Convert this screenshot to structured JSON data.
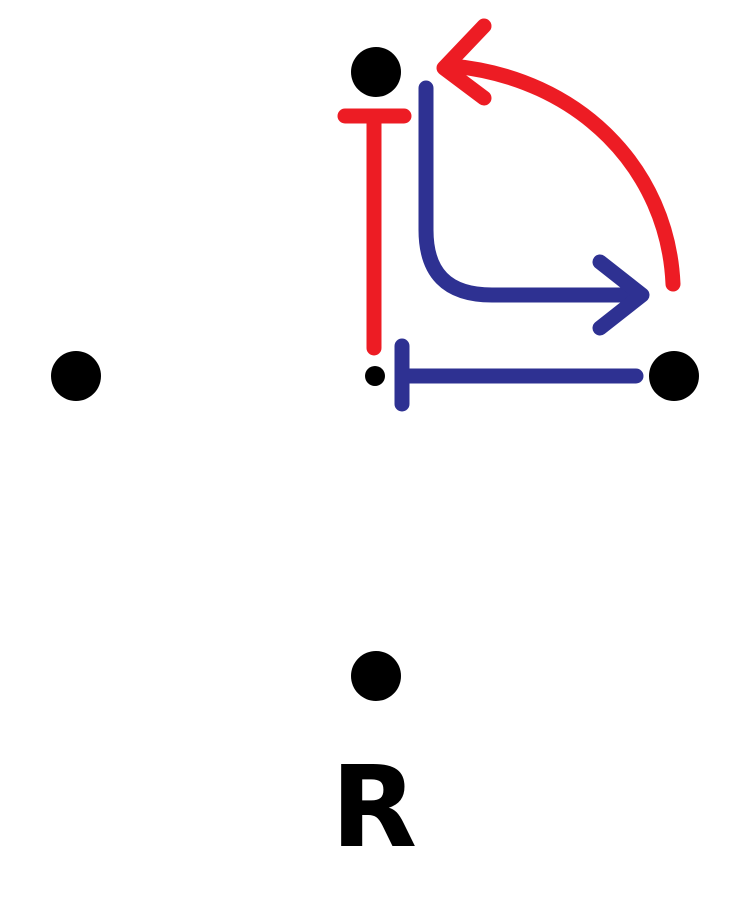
{
  "diagram": {
    "label": "R",
    "colors": {
      "background": "#ffffff",
      "point": "#000000",
      "red": "#ed1c24",
      "blue": "#2e3192",
      "label": "#000000"
    },
    "points": [
      {
        "name": "point-top"
      },
      {
        "name": "point-left"
      },
      {
        "name": "point-center"
      },
      {
        "name": "point-right"
      },
      {
        "name": "point-bottom"
      }
    ],
    "arrows": [
      {
        "name": "red-rotation-arrow",
        "color": "red"
      },
      {
        "name": "blue-rotation-arrow",
        "color": "blue"
      }
    ],
    "translation_markers": [
      {
        "name": "red-translation-marker",
        "color": "red"
      },
      {
        "name": "blue-translation-marker",
        "color": "blue"
      }
    ]
  }
}
